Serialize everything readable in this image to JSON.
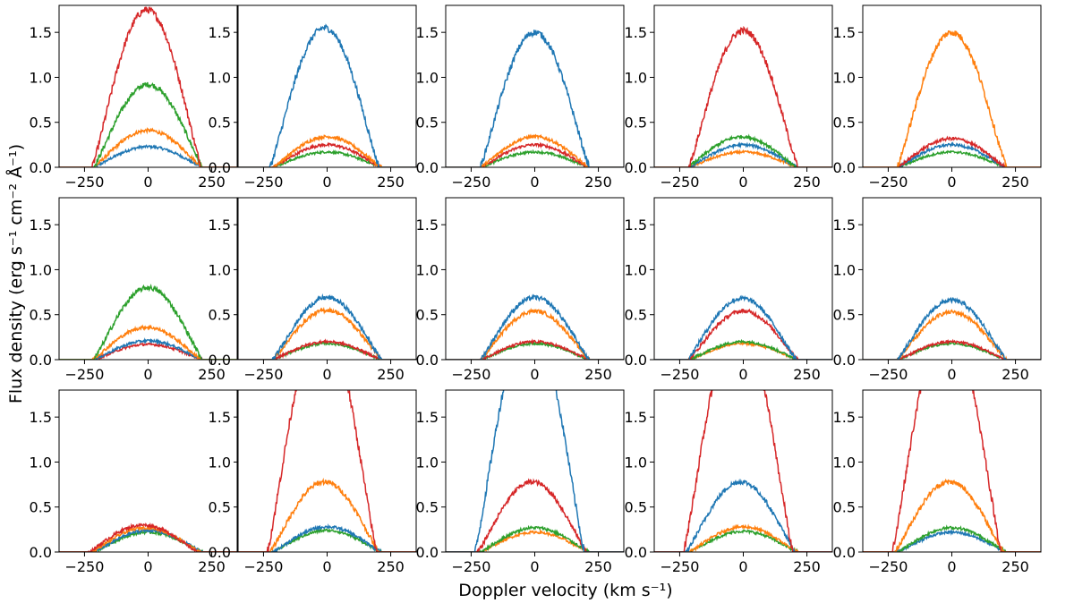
{
  "figure": {
    "xlabel": "Doppler velocity (km s⁻¹)",
    "ylabel": "Flux density (erg s⁻¹ cm⁻² Å⁻¹)"
  },
  "colors": {
    "blue": "#1f77b4",
    "orange": "#ff7f0e",
    "green": "#2ca02c",
    "red": "#d62728"
  },
  "chart_data": [
    {
      "type": "line",
      "row": 1,
      "col": 1,
      "xlim": [
        -350,
        350
      ],
      "ylim": [
        0,
        1.8
      ],
      "xticks": [
        "-250",
        "0",
        "250"
      ],
      "yticks": [
        "0.0",
        "0.5",
        "1.0",
        "1.5"
      ],
      "series": [
        {
          "color": "blue",
          "peak": 0.23,
          "center": 0,
          "halfwidth": 215
        },
        {
          "color": "orange",
          "peak": 0.41,
          "center": 0,
          "halfwidth": 215
        },
        {
          "color": "green",
          "peak": 0.92,
          "center": 0,
          "halfwidth": 215
        },
        {
          "color": "red",
          "peak": 1.75,
          "center": -5,
          "halfwidth": 215
        }
      ]
    },
    {
      "type": "line",
      "row": 1,
      "col": 2,
      "xlim": [
        -350,
        350
      ],
      "ylim": [
        0,
        1.8
      ],
      "xticks": [
        "-250",
        "0",
        "250"
      ],
      "yticks": [
        "0.0",
        "0.5",
        "1.0",
        "1.5"
      ],
      "series": [
        {
          "color": "green",
          "peak": 0.17,
          "center": 0,
          "halfwidth": 215
        },
        {
          "color": "red",
          "peak": 0.25,
          "center": 0,
          "halfwidth": 215
        },
        {
          "color": "orange",
          "peak": 0.34,
          "center": 0,
          "halfwidth": 215
        },
        {
          "color": "blue",
          "peak": 1.55,
          "center": -10,
          "halfwidth": 215
        }
      ]
    },
    {
      "type": "line",
      "row": 1,
      "col": 3,
      "xlim": [
        -350,
        350
      ],
      "ylim": [
        0,
        1.8
      ],
      "xticks": [
        "-250",
        "0",
        "250"
      ],
      "yticks": [
        "0.0",
        "0.5",
        "1.0",
        "1.5"
      ],
      "series": [
        {
          "color": "green",
          "peak": 0.17,
          "center": 0,
          "halfwidth": 215
        },
        {
          "color": "red",
          "peak": 0.25,
          "center": 0,
          "halfwidth": 215
        },
        {
          "color": "orange",
          "peak": 0.34,
          "center": 0,
          "halfwidth": 215
        },
        {
          "color": "blue",
          "peak": 1.5,
          "center": 0,
          "halfwidth": 215
        }
      ]
    },
    {
      "type": "line",
      "row": 1,
      "col": 4,
      "xlim": [
        -350,
        350
      ],
      "ylim": [
        0,
        1.8
      ],
      "xticks": [
        "-250",
        "0",
        "250"
      ],
      "yticks": [
        "0.0",
        "0.5",
        "1.0",
        "1.5"
      ],
      "series": [
        {
          "color": "orange",
          "peak": 0.17,
          "center": 0,
          "halfwidth": 215
        },
        {
          "color": "blue",
          "peak": 0.25,
          "center": 0,
          "halfwidth": 215
        },
        {
          "color": "green",
          "peak": 0.34,
          "center": -5,
          "halfwidth": 215
        },
        {
          "color": "red",
          "peak": 1.52,
          "center": 0,
          "halfwidth": 215
        }
      ]
    },
    {
      "type": "line",
      "row": 1,
      "col": 5,
      "xlim": [
        -350,
        350
      ],
      "ylim": [
        0,
        1.8
      ],
      "xticks": [
        "-250",
        "0",
        "250"
      ],
      "yticks": [
        "0.0",
        "0.5",
        "1.0",
        "1.5"
      ],
      "series": [
        {
          "color": "green",
          "peak": 0.17,
          "center": 0,
          "halfwidth": 215
        },
        {
          "color": "blue",
          "peak": 0.25,
          "center": 0,
          "halfwidth": 215
        },
        {
          "color": "red",
          "peak": 0.32,
          "center": 0,
          "halfwidth": 215
        },
        {
          "color": "orange",
          "peak": 1.5,
          "center": 0,
          "halfwidth": 215
        }
      ]
    },
    {
      "type": "line",
      "row": 2,
      "col": 1,
      "xlim": [
        -350,
        350
      ],
      "ylim": [
        0,
        1.8
      ],
      "xticks": [
        "-250",
        "0",
        "250"
      ],
      "yticks": [
        "0.0",
        "0.5",
        "1.0",
        "1.5"
      ],
      "series": [
        {
          "color": "red",
          "peak": 0.17,
          "center": 0,
          "halfwidth": 215
        },
        {
          "color": "blue",
          "peak": 0.21,
          "center": 0,
          "halfwidth": 215
        },
        {
          "color": "orange",
          "peak": 0.36,
          "center": -5,
          "halfwidth": 215
        },
        {
          "color": "green",
          "peak": 0.8,
          "center": 0,
          "halfwidth": 215
        }
      ]
    },
    {
      "type": "line",
      "row": 2,
      "col": 2,
      "xlim": [
        -350,
        350
      ],
      "ylim": [
        0,
        1.8
      ],
      "xticks": [
        "-250",
        "0",
        "250"
      ],
      "yticks": [
        "0.0",
        "0.5",
        "1.0",
        "1.5"
      ],
      "series": [
        {
          "color": "green",
          "peak": 0.18,
          "center": 0,
          "halfwidth": 215
        },
        {
          "color": "red",
          "peak": 0.2,
          "center": 0,
          "halfwidth": 215
        },
        {
          "color": "orange",
          "peak": 0.55,
          "center": 0,
          "halfwidth": 215
        },
        {
          "color": "blue",
          "peak": 0.69,
          "center": 0,
          "halfwidth": 215
        }
      ]
    },
    {
      "type": "line",
      "row": 2,
      "col": 3,
      "xlim": [
        -350,
        350
      ],
      "ylim": [
        0,
        1.8
      ],
      "xticks": [
        "-250",
        "0",
        "250"
      ],
      "yticks": [
        "0.0",
        "0.5",
        "1.0",
        "1.5"
      ],
      "series": [
        {
          "color": "green",
          "peak": 0.18,
          "center": 0,
          "halfwidth": 215
        },
        {
          "color": "red",
          "peak": 0.2,
          "center": 0,
          "halfwidth": 215
        },
        {
          "color": "orange",
          "peak": 0.54,
          "center": 0,
          "halfwidth": 215
        },
        {
          "color": "blue",
          "peak": 0.69,
          "center": 0,
          "halfwidth": 215
        }
      ]
    },
    {
      "type": "line",
      "row": 2,
      "col": 4,
      "xlim": [
        -350,
        350
      ],
      "ylim": [
        0,
        1.8
      ],
      "xticks": [
        "-250",
        "0",
        "250"
      ],
      "yticks": [
        "0.0",
        "0.5",
        "1.0",
        "1.5"
      ],
      "series": [
        {
          "color": "orange",
          "peak": 0.18,
          "center": 0,
          "halfwidth": 215
        },
        {
          "color": "green",
          "peak": 0.2,
          "center": 0,
          "halfwidth": 215
        },
        {
          "color": "red",
          "peak": 0.54,
          "center": 0,
          "halfwidth": 215
        },
        {
          "color": "blue",
          "peak": 0.68,
          "center": -5,
          "halfwidth": 215
        }
      ]
    },
    {
      "type": "line",
      "row": 2,
      "col": 5,
      "xlim": [
        -350,
        350
      ],
      "ylim": [
        0,
        1.8
      ],
      "xticks": [
        "-250",
        "0",
        "250"
      ],
      "yticks": [
        "0.0",
        "0.5",
        "1.0",
        "1.5"
      ],
      "series": [
        {
          "color": "green",
          "peak": 0.18,
          "center": 0,
          "halfwidth": 215
        },
        {
          "color": "red",
          "peak": 0.2,
          "center": 0,
          "halfwidth": 215
        },
        {
          "color": "orange",
          "peak": 0.53,
          "center": 0,
          "halfwidth": 215
        },
        {
          "color": "blue",
          "peak": 0.66,
          "center": 0,
          "halfwidth": 215
        }
      ]
    },
    {
      "type": "line",
      "row": 3,
      "col": 1,
      "xlim": [
        -350,
        350
      ],
      "ylim": [
        0,
        1.8
      ],
      "xticks": [
        "-250",
        "0",
        "250"
      ],
      "yticks": [
        "0.0",
        "0.5",
        "1.0",
        "1.5"
      ],
      "series": [
        {
          "color": "green",
          "peak": 0.22,
          "center": 0,
          "halfwidth": 215
        },
        {
          "color": "blue",
          "peak": 0.24,
          "center": 0,
          "halfwidth": 215
        },
        {
          "color": "orange",
          "peak": 0.27,
          "center": -10,
          "halfwidth": 215
        },
        {
          "color": "red",
          "peak": 0.3,
          "center": -20,
          "halfwidth": 215
        }
      ]
    },
    {
      "type": "line",
      "row": 3,
      "col": 2,
      "xlim": [
        -350,
        350
      ],
      "ylim": [
        0,
        1.8
      ],
      "xticks": [
        "-250",
        "0",
        "250"
      ],
      "yticks": [
        "0.0",
        "0.5",
        "1.0",
        "1.5"
      ],
      "series": [
        {
          "color": "green",
          "peak": 0.24,
          "center": 0,
          "halfwidth": 215
        },
        {
          "color": "blue",
          "peak": 0.28,
          "center": 0,
          "halfwidth": 215
        },
        {
          "color": "orange",
          "peak": 0.78,
          "center": -10,
          "halfwidth": 215
        },
        {
          "color": "red",
          "peak": 2.6,
          "center": -20,
          "halfwidth": 215
        }
      ]
    },
    {
      "type": "line",
      "row": 3,
      "col": 3,
      "xlim": [
        -350,
        350
      ],
      "ylim": [
        0,
        1.8
      ],
      "xticks": [
        "-250",
        "0",
        "250"
      ],
      "yticks": [
        "0.0",
        "0.5",
        "1.0",
        "1.5"
      ],
      "series": [
        {
          "color": "orange",
          "peak": 0.22,
          "center": 0,
          "halfwidth": 215
        },
        {
          "color": "green",
          "peak": 0.27,
          "center": 0,
          "halfwidth": 215
        },
        {
          "color": "red",
          "peak": 0.78,
          "center": -10,
          "halfwidth": 215
        },
        {
          "color": "blue",
          "peak": 2.6,
          "center": -20,
          "halfwidth": 215
        }
      ]
    },
    {
      "type": "line",
      "row": 3,
      "col": 4,
      "xlim": [
        -350,
        350
      ],
      "ylim": [
        0,
        1.8
      ],
      "xticks": [
        "-250",
        "0",
        "250"
      ],
      "yticks": [
        "0.0",
        "0.5",
        "1.0",
        "1.5"
      ],
      "series": [
        {
          "color": "green",
          "peak": 0.23,
          "center": 0,
          "halfwidth": 215
        },
        {
          "color": "orange",
          "peak": 0.28,
          "center": 0,
          "halfwidth": 215
        },
        {
          "color": "blue",
          "peak": 0.78,
          "center": -10,
          "halfwidth": 215
        },
        {
          "color": "red",
          "peak": 2.6,
          "center": -20,
          "halfwidth": 215
        }
      ]
    },
    {
      "type": "line",
      "row": 3,
      "col": 5,
      "xlim": [
        -350,
        350
      ],
      "ylim": [
        0,
        1.8
      ],
      "xticks": [
        "-250",
        "0",
        "250"
      ],
      "yticks": [
        "0.0",
        "0.5",
        "1.0",
        "1.5"
      ],
      "series": [
        {
          "color": "blue",
          "peak": 0.22,
          "center": 0,
          "halfwidth": 215
        },
        {
          "color": "green",
          "peak": 0.27,
          "center": 0,
          "halfwidth": 215
        },
        {
          "color": "orange",
          "peak": 0.78,
          "center": -10,
          "halfwidth": 215
        },
        {
          "color": "red",
          "peak": 2.6,
          "center": -20,
          "halfwidth": 215
        }
      ]
    }
  ]
}
